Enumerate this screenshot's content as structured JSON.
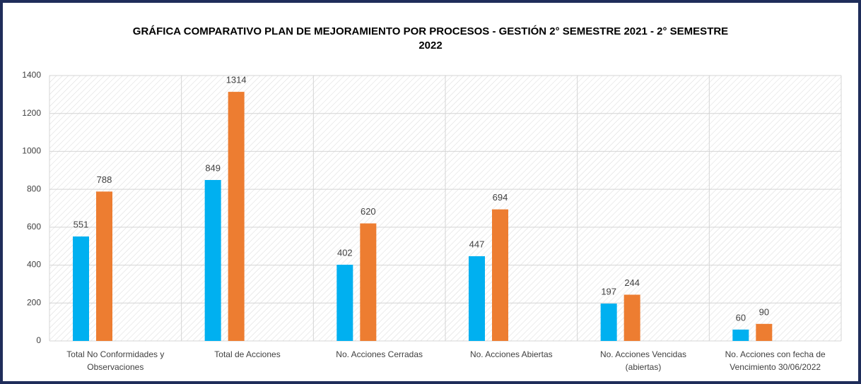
{
  "chart_data": {
    "type": "bar",
    "title": "GRÁFICA COMPARATIVO PLAN DE MEJORAMIENTO POR PROCESOS - GESTIÓN 2° SEMESTRE 2021 - 2° SEMESTRE 2022",
    "categories": [
      "Total No Conformidades y Observaciones",
      "Total de Acciones",
      "No. Acciones Cerradas",
      "No. Acciones Abiertas",
      "No. Acciones Vencidas (abiertas)",
      "No. Acciones con fecha de Vencimiento 30/06/2022"
    ],
    "series": [
      {
        "color": "#00b0f0",
        "values": [
          551,
          849,
          402,
          447,
          197,
          60
        ]
      },
      {
        "color": "#ed7d31",
        "values": [
          788,
          1314,
          620,
          694,
          244,
          90
        ]
      }
    ],
    "ylim": [
      0,
      1400
    ],
    "yticks": [
      0,
      200,
      400,
      600,
      800,
      1000,
      1200,
      1400
    ],
    "grid": true
  }
}
